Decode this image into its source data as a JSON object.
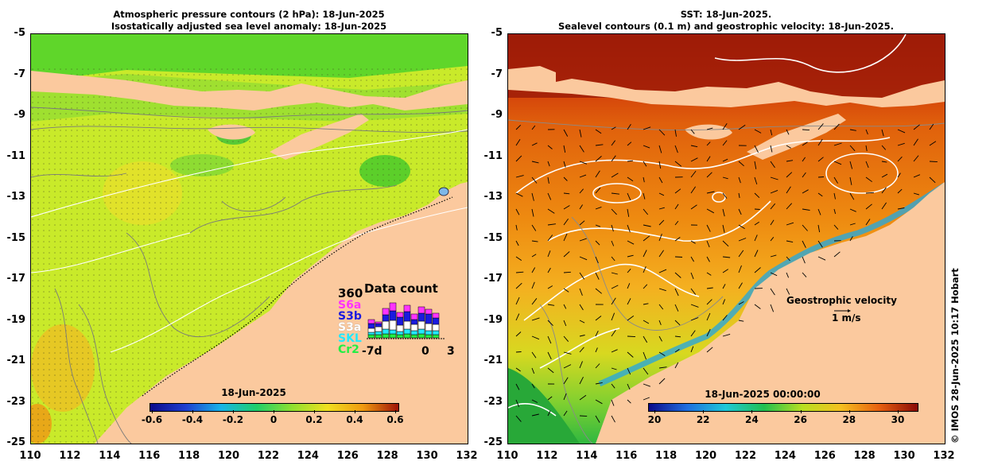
{
  "left": {
    "title_line1": "Atmospheric pressure contours (2 hPa): 18-Jun-2025",
    "title_line2": "Isostatically adjusted sea level anomaly: 18-Jun-2025",
    "colorbar": {
      "title": "18-Jun-2025",
      "ticks": [
        "-0.6",
        "-0.4",
        "-0.2",
        "0",
        "0.2",
        "0.4",
        "0.6"
      ],
      "colors": [
        "#0b0a8a",
        "#1f3fd0",
        "#18b4e8",
        "#1fcf6a",
        "#8fe030",
        "#f0e020",
        "#f09a10",
        "#a01208"
      ]
    },
    "data_count": {
      "title": "Data count",
      "max": "360",
      "missions": [
        {
          "label": "S6a",
          "color": "#ff33ff"
        },
        {
          "label": "S3b",
          "color": "#1a1adf"
        },
        {
          "label": "S3a",
          "color": "#ffffff"
        },
        {
          "label": "SKL",
          "color": "#22e8ff"
        },
        {
          "label": "Cr2",
          "color": "#22ee44"
        }
      ],
      "axis_labels": [
        "-7d",
        "0",
        "3"
      ]
    }
  },
  "right": {
    "title_line1": "SST: 18-Jun-2025.",
    "title_line2": "Sealevel contours (0.1 m) and geostrophic velocity: 18-Jun-2025.",
    "colorbar": {
      "title": "18-Jun-2025 00:00:00",
      "ticks": [
        "20",
        "22",
        "24",
        "26",
        "28",
        "30"
      ],
      "colors": [
        "#0b0a8a",
        "#1f6fe0",
        "#20c8d8",
        "#22c050",
        "#b8e020",
        "#f5c020",
        "#e86010",
        "#8a0a05"
      ]
    },
    "velocity_label": "Geostrophic velocity",
    "velocity_scale": "1 m/s"
  },
  "axes": {
    "y_ticks": [
      "-5",
      "-7",
      "-9",
      "-11",
      "-13",
      "-15",
      "-17",
      "-19",
      "-21",
      "-23",
      "-25"
    ],
    "x_ticks": [
      "110",
      "112",
      "114",
      "116",
      "118",
      "120",
      "122",
      "124",
      "126",
      "128",
      "130",
      "132"
    ]
  },
  "colors": {
    "land": "#fbc99e"
  },
  "credit": "© IMOS 28-Jun-2025 10:17 Hobart"
}
